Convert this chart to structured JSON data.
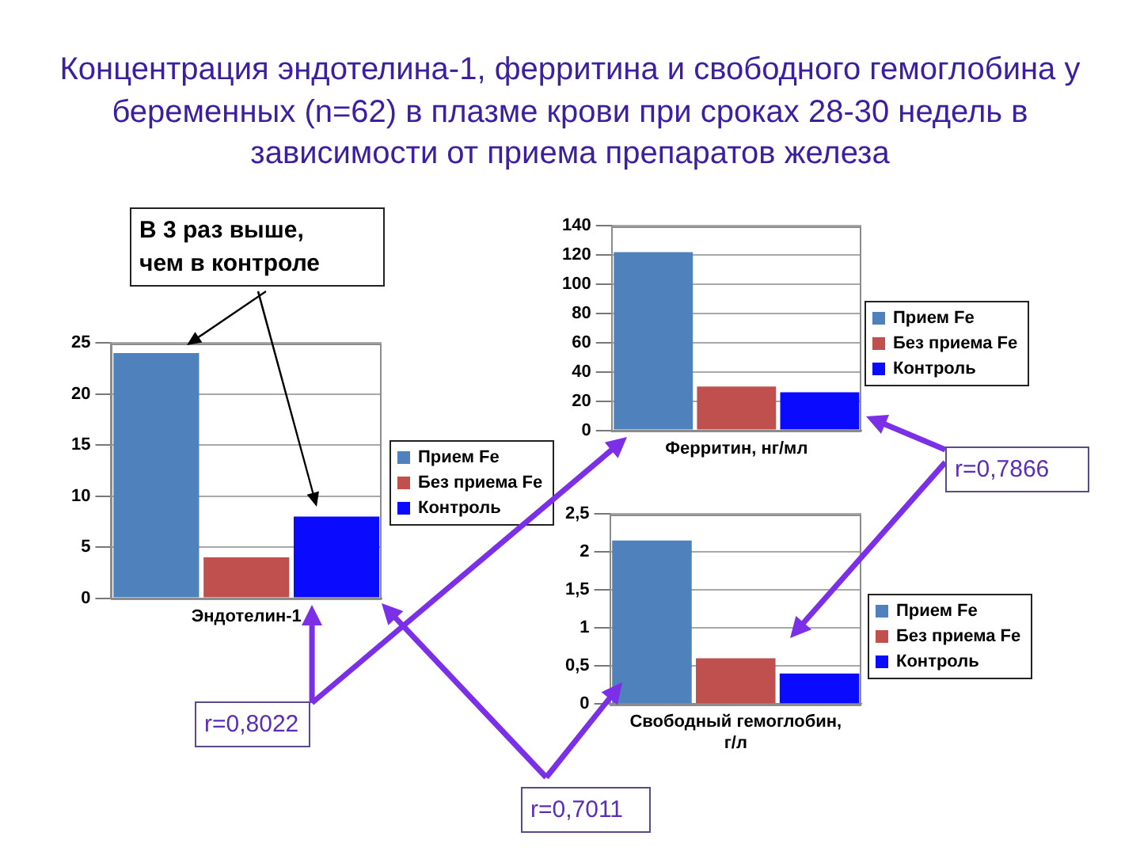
{
  "chart_data": [
    {
      "type": "bar",
      "title": "Концентрация эндотелина-1, ферритина и свободного гемоглобина у беременных (n=62) в плазме крови при сроках 28-30 недель в зависимости от приема препаратов железа",
      "xlabel": "Эндотелин-1",
      "categories": [
        null,
        null,
        null
      ],
      "stacked": true,
      "series": [
        {
          "name": "Прием Fe",
          "color": "#4f81bd",
          "values": [
            24,
            null,
            null
          ]
        },
        {
          "name": "Без приема Fe",
          "color": "#c0504d",
          "values": [
            null,
            4,
            null
          ]
        },
        {
          "name": "Контроль",
          "color": "#0a0aff",
          "values": [
            null,
            null,
            8
          ]
        }
      ],
      "ylim": [
        0,
        25
      ],
      "yticks": [
        0,
        5,
        10,
        15,
        20,
        25
      ],
      "grid": "y",
      "legend": "right",
      "annotations": [
        "В 3 раз выше, чем в контроле",
        "r=0,8022"
      ]
    },
    {
      "type": "bar",
      "xlabel": "Ферритин, нг/мл",
      "categories": [
        null,
        null,
        null
      ],
      "stacked": true,
      "series": [
        {
          "name": "Прием Fe",
          "color": "#4f81bd",
          "values": [
            122,
            null,
            null
          ]
        },
        {
          "name": "Без приема Fe",
          "color": "#c0504d",
          "values": [
            null,
            30,
            null
          ]
        },
        {
          "name": "Контроль",
          "color": "#0a0aff",
          "values": [
            null,
            null,
            26
          ]
        }
      ],
      "ylim": [
        0,
        140
      ],
      "yticks": [
        0,
        20,
        40,
        60,
        80,
        100,
        120,
        140
      ],
      "grid": "y",
      "legend": "right",
      "annotations": [
        "r=0,7866"
      ]
    },
    {
      "type": "bar",
      "xlabel": "Свободный гемоглобин, г/л",
      "categories": [
        null,
        null,
        null
      ],
      "stacked": true,
      "series": [
        {
          "name": "Прием Fe",
          "color": "#4f81bd",
          "values": [
            2.15,
            null,
            null
          ]
        },
        {
          "name": "Без приема Fe",
          "color": "#c0504d",
          "values": [
            null,
            0.6,
            null
          ]
        },
        {
          "name": "Контроль",
          "color": "#0a0aff",
          "values": [
            null,
            null,
            0.4
          ]
        }
      ],
      "ylim": [
        0,
        2.5
      ],
      "yticks": [
        0,
        {
          "value": 0.5,
          "label": "0,5"
        },
        1,
        {
          "value": 1.5,
          "label": "1,5"
        },
        2,
        {
          "value": 2.5,
          "label": "2,5"
        }
      ],
      "grid": "y",
      "legend": "right",
      "annotations": [
        "r=0,7011"
      ]
    }
  ]
}
